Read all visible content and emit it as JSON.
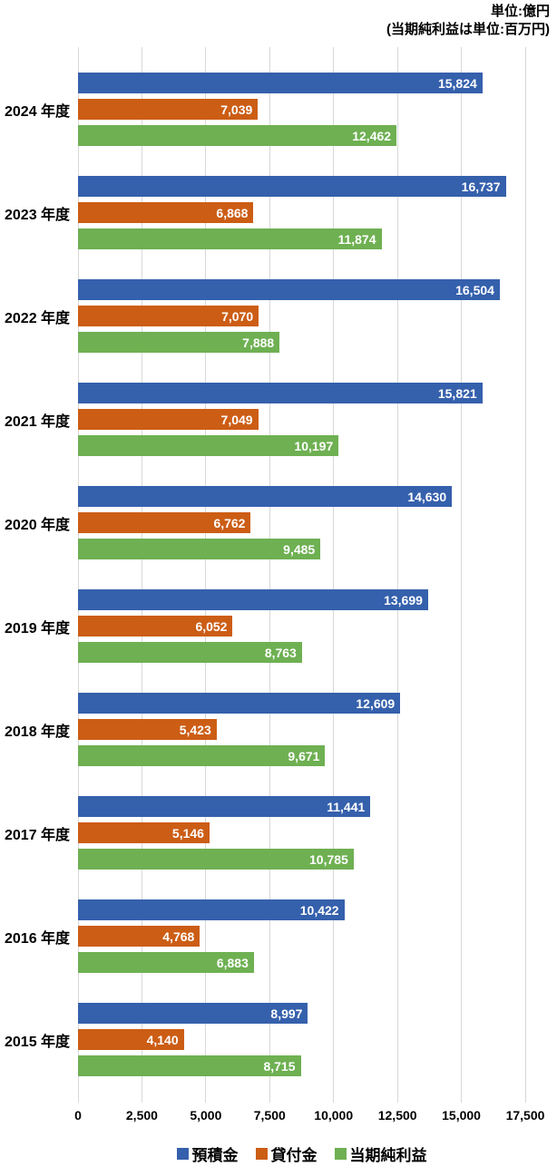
{
  "header": {
    "unit_note_line1": "単位:億円",
    "unit_note_line2": "(当期純利益は単位:百万円)"
  },
  "chart_data": {
    "type": "bar",
    "orientation": "horizontal",
    "title": "",
    "xlabel": "",
    "ylabel": "",
    "categories": [
      "2024 年度",
      "2023 年度",
      "2022 年度",
      "2021 年度",
      "2020 年度",
      "2019 年度",
      "2018 年度",
      "2017 年度",
      "2016 年度",
      "2015 年度"
    ],
    "series": [
      {
        "name": "預積金",
        "color": "#3560ac",
        "values": [
          15824,
          16737,
          16504,
          15821,
          14630,
          13699,
          12609,
          11441,
          10422,
          8997
        ]
      },
      {
        "name": "貸付金",
        "color": "#cc5d15",
        "values": [
          7039,
          6868,
          7070,
          7049,
          6762,
          6052,
          5423,
          5146,
          4768,
          4140
        ]
      },
      {
        "name": "当期純利益",
        "color": "#6eb052",
        "values": [
          12462,
          11874,
          7888,
          10197,
          9485,
          8763,
          9671,
          10785,
          6883,
          8715
        ]
      }
    ],
    "x_ticks": [
      0,
      2500,
      5000,
      7500,
      10000,
      12500,
      15000,
      17500
    ],
    "xlim": [
      0,
      17500
    ],
    "grid": true,
    "gridline_color": "#d8d8d8",
    "value_labels": "inside-end",
    "value_label_color": "#ffffff",
    "legend_position": "bottom"
  }
}
